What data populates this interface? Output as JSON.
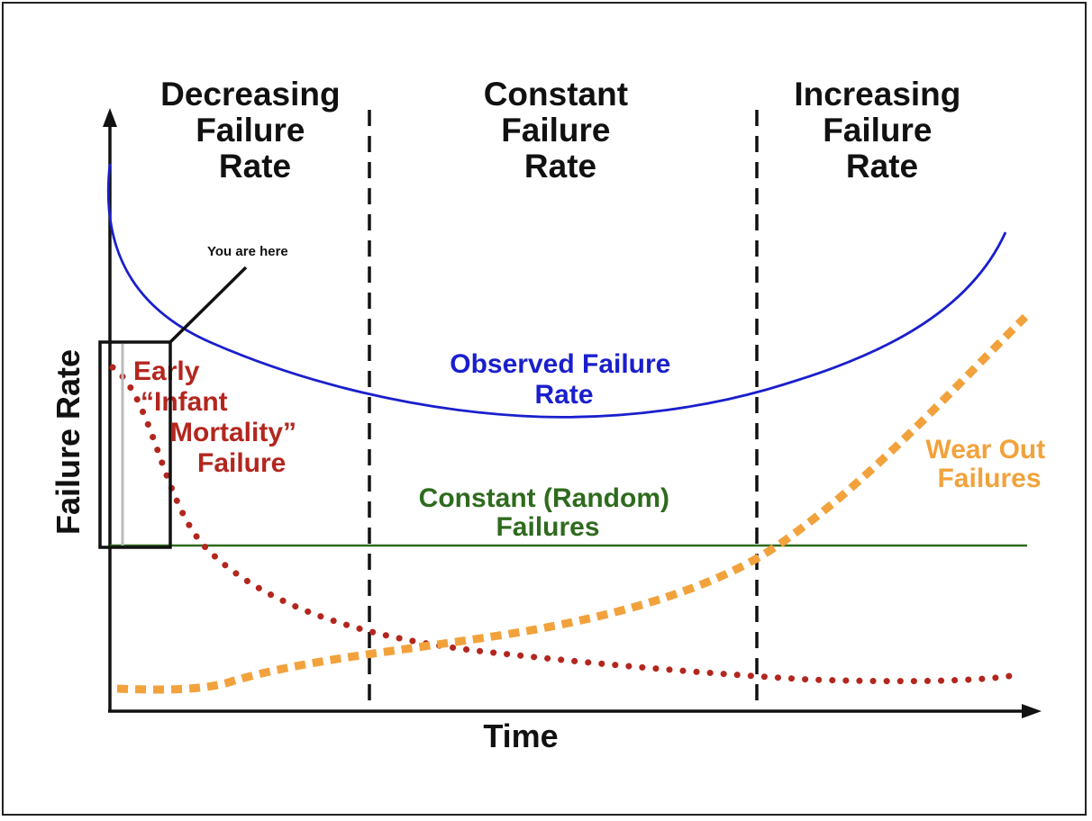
{
  "phases": [
    {
      "title": "Decreasing Failure Rate",
      "lines": [
        "Decreasing",
        "Failure",
        "Rate"
      ]
    },
    {
      "title": "Constant Failure Rate",
      "lines": [
        "Constant",
        "Failure",
        "Rate"
      ]
    },
    {
      "title": "Increasing Failure Rate",
      "lines": [
        "Increasing",
        "Failure",
        "Rate"
      ]
    }
  ],
  "axes": {
    "x_label": "Time",
    "y_label": "Failure Rate"
  },
  "curves": {
    "observed": {
      "lines": [
        "Observed Failure",
        "Rate"
      ],
      "color": "#1a1fcc"
    },
    "infant": {
      "lines": [
        "Early",
        "“Infant",
        "Mortality”",
        "Failure"
      ],
      "color": "#b3261e"
    },
    "random": {
      "lines": [
        "Constant (Random)",
        "Failures"
      ],
      "color": "#2e6b1e"
    },
    "wearout": {
      "lines": [
        "Wear Out",
        "Failures"
      ],
      "color": "#f2a23c"
    }
  },
  "annotation": {
    "text": "You are here"
  }
}
